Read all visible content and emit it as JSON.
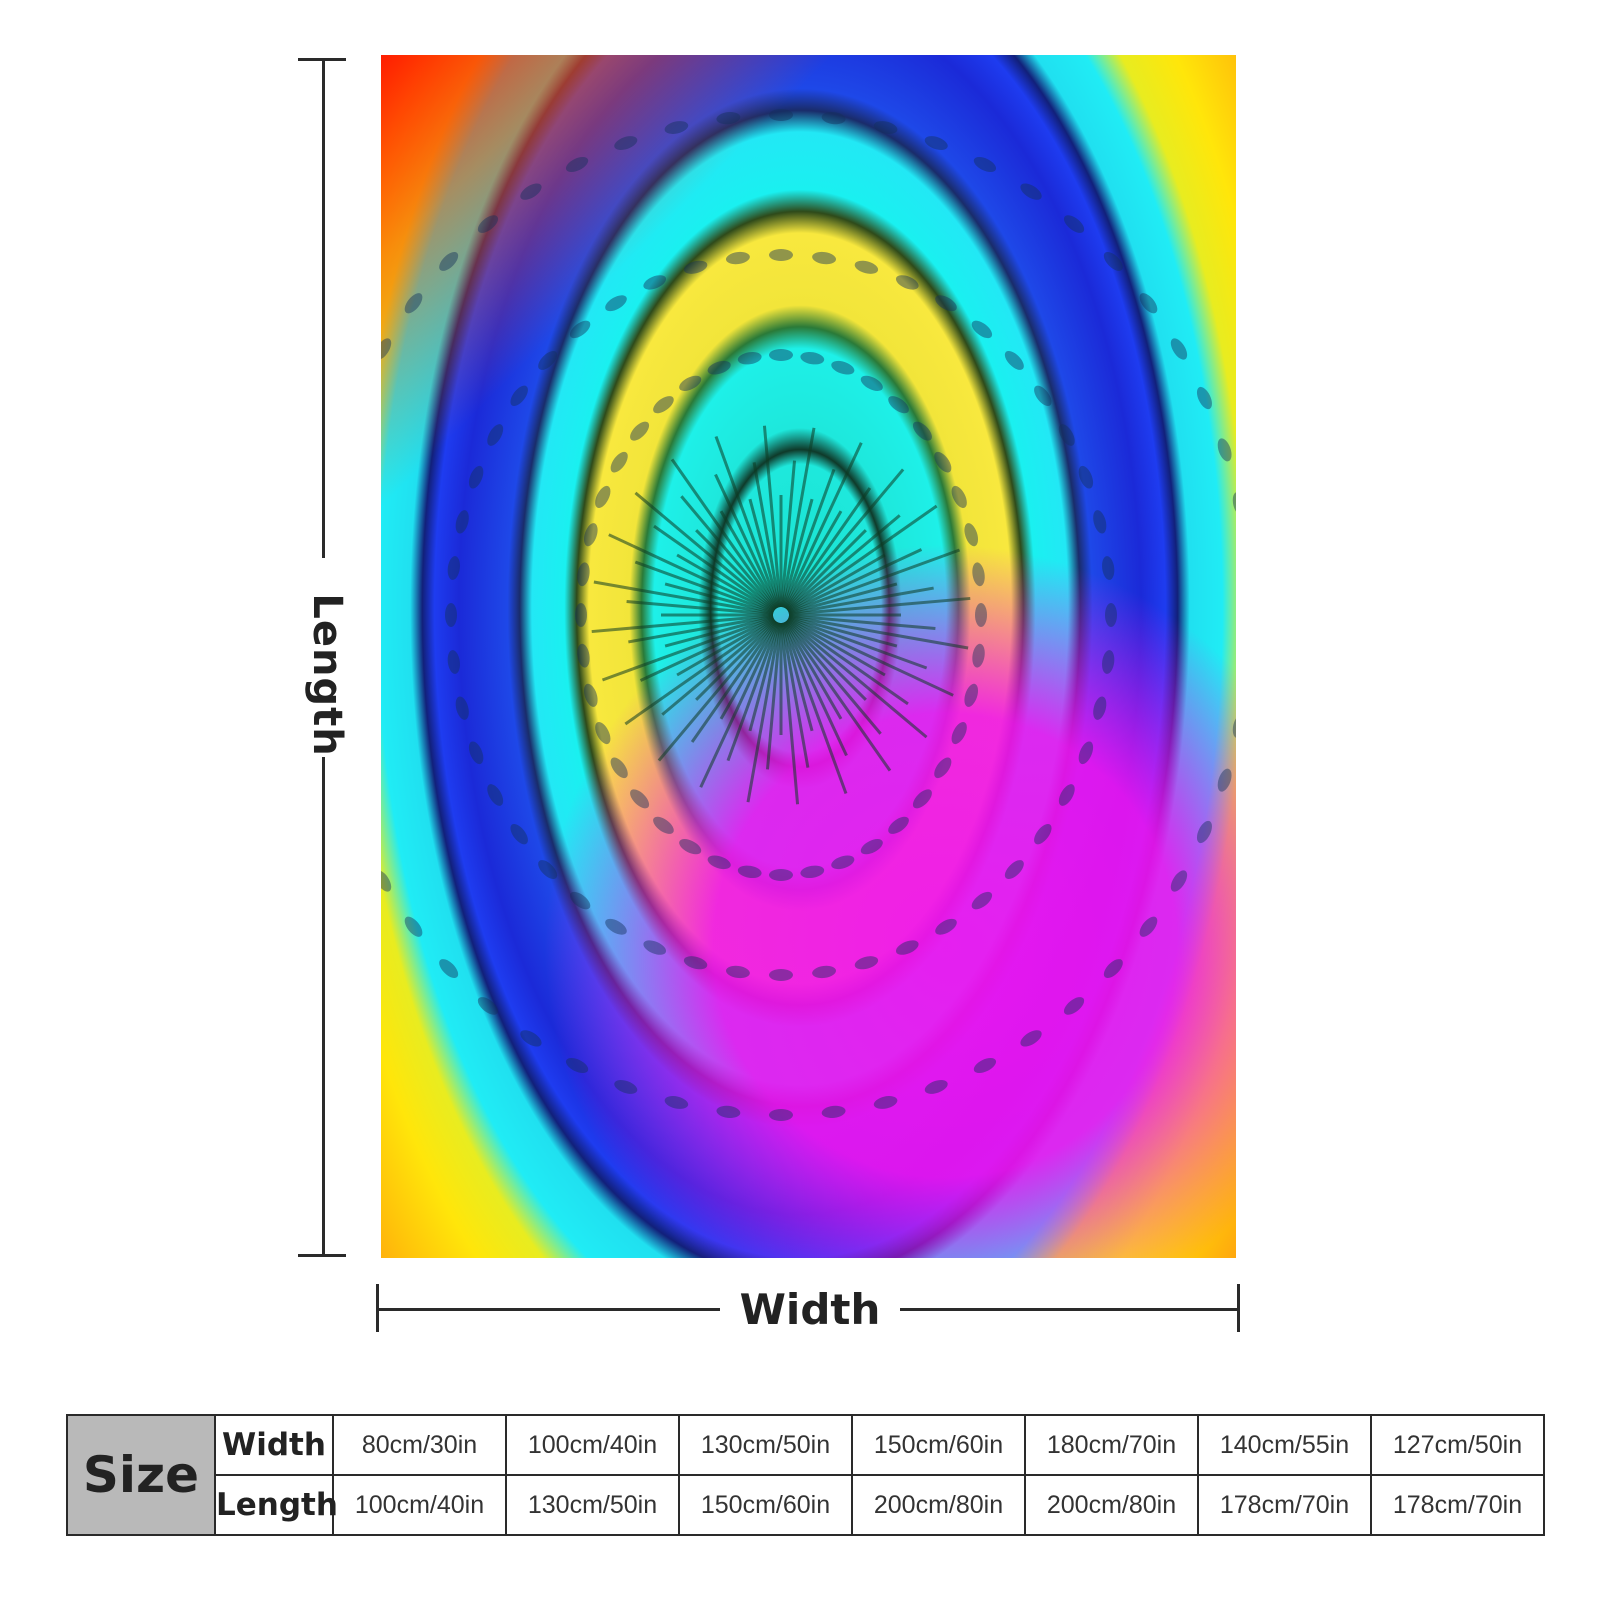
{
  "labels": {
    "length": "Length",
    "width": "Width"
  },
  "size_table": {
    "header": "Size",
    "row_labels": [
      "Width",
      "Length"
    ],
    "widths": [
      "80cm/30in",
      "100cm/40in",
      "130cm/50in",
      "150cm/60in",
      "180cm/70in",
      "140cm/55in",
      "127cm/50in"
    ],
    "lengths": [
      "100cm/40in",
      "130cm/50in",
      "150cm/60in",
      "200cm/80in",
      "200cm/80in",
      "178cm/70in",
      "178cm/70in"
    ]
  },
  "colors": {
    "line": "#2a2a2a",
    "size_header_bg": "#b9b9b9",
    "tie_dye": [
      "#ff1a00",
      "#ffa500",
      "#ffe60a",
      "#1ee8e8",
      "#1b2ad8",
      "#f014f0"
    ]
  }
}
